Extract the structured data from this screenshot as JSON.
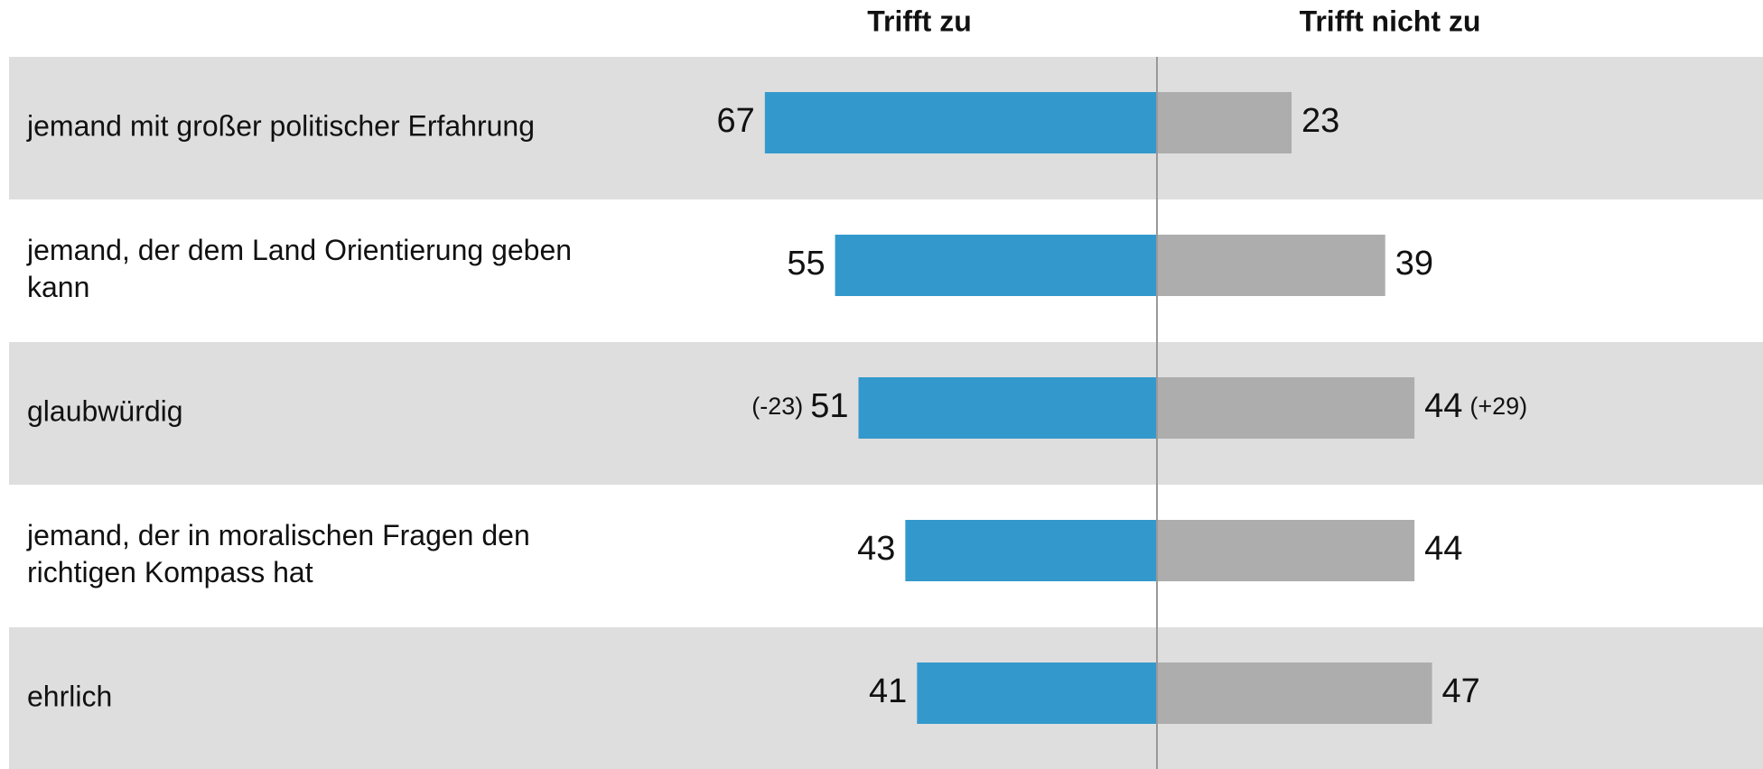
{
  "chart_data": {
    "type": "diverging-bar",
    "categories": [
      "jemand mit großer politischer Erfahrung",
      "jemand, der dem Land Orientierung geben kann",
      "glaubwürdig",
      "jemand, der in moralischen Fragen den richtigen Kompass hat",
      "ehrlich"
    ],
    "series": [
      {
        "name": "Trifft zu",
        "color": "#3399cc",
        "values": [
          67,
          55,
          51,
          43,
          41
        ],
        "notes": [
          null,
          null,
          "(-23)",
          null,
          null
        ]
      },
      {
        "name": "Trifft nicht zu",
        "color": "#adadad",
        "values": [
          23,
          39,
          44,
          44,
          47
        ],
        "notes": [
          null,
          null,
          "(+29)",
          null,
          null
        ]
      }
    ]
  }
}
